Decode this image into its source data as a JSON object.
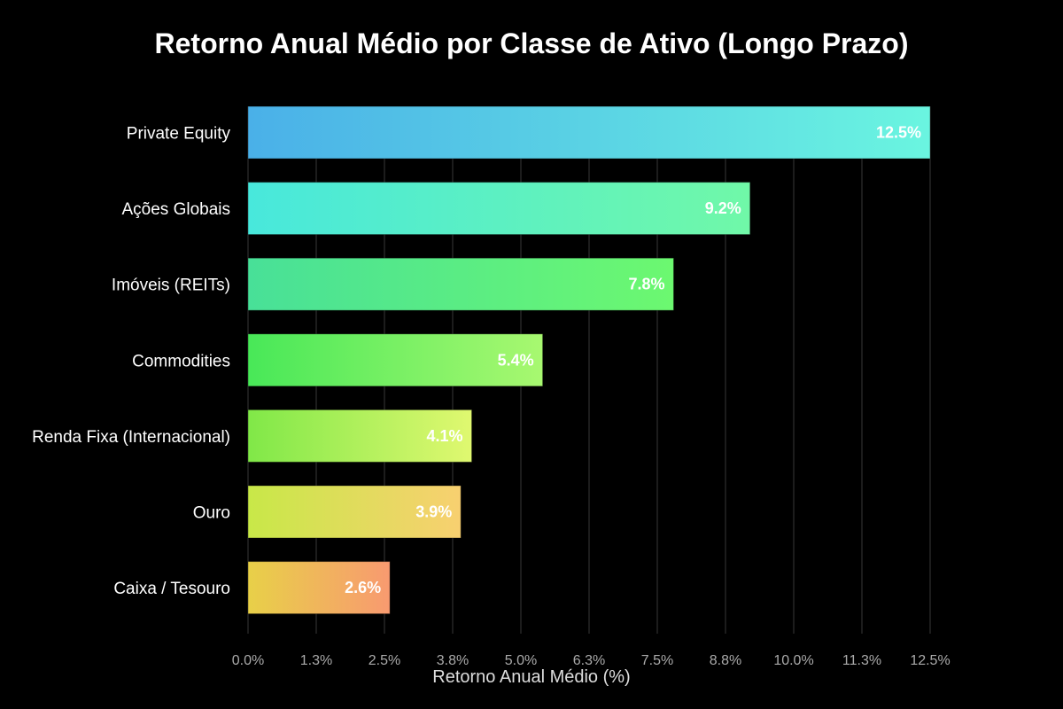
{
  "chart_data": {
    "type": "bar",
    "orientation": "horizontal",
    "title": "Retorno Anual Médio por Classe de Ativo (Longo Prazo)",
    "xlabel": "Retorno Anual Médio (%)",
    "ylabel": "",
    "categories": [
      "Private Equity",
      "Ações Globais",
      "Imóveis (REITs)",
      "Commodities",
      "Renda Fixa (Internacional)",
      "Ouro",
      "Caixa / Tesouro"
    ],
    "values": [
      12.5,
      9.2,
      7.8,
      5.4,
      4.1,
      3.9,
      2.6
    ],
    "data_labels": [
      "12.5%",
      "9.2%",
      "7.8%",
      "5.4%",
      "4.1%",
      "3.9%",
      "2.6%"
    ],
    "xlim": [
      0,
      12.5
    ],
    "x_ticks": [
      0,
      1.25,
      2.5,
      3.75,
      5,
      6.25,
      7.5,
      8.75,
      10,
      11.25,
      12.5
    ],
    "x_tick_labels": [
      "0.0%",
      "1.3%",
      "2.5%",
      "3.8%",
      "5.0%",
      "6.3%",
      "7.5%",
      "8.8%",
      "10.0%",
      "11.3%",
      "12.5%"
    ],
    "grid": "vertical",
    "background": "#000000",
    "bar_gradients": [
      [
        "#4ab0e8",
        "#6af5e0"
      ],
      [
        "#48e8dc",
        "#70f8a8"
      ],
      [
        "#48e098",
        "#6cf870"
      ],
      [
        "#48e858",
        "#a8f870"
      ],
      [
        "#80e848",
        "#e0f870"
      ],
      [
        "#c8e848",
        "#f8d070"
      ],
      [
        "#e8d048",
        "#f89a70"
      ]
    ]
  }
}
